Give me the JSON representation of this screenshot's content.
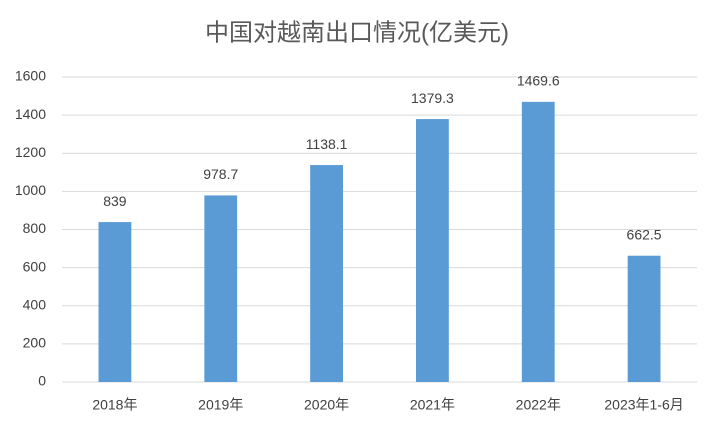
{
  "chart_data": {
    "type": "bar",
    "title": "中国对越南出口情况(亿美元)",
    "categories": [
      "2018年",
      "2019年",
      "2020年",
      "2021年",
      "2022年",
      "2023年1-6月"
    ],
    "values": [
      839,
      978.7,
      1138.1,
      1379.3,
      1469.6,
      662.5
    ],
    "color": "#5b9bd5",
    "ylim": [
      0,
      1600
    ],
    "yticks": [
      0,
      200,
      400,
      600,
      800,
      1000,
      1200,
      1400,
      1600
    ],
    "grid": true
  }
}
